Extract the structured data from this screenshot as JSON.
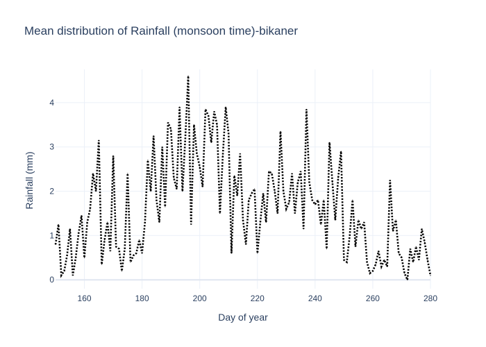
{
  "chart_data": {
    "type": "line",
    "title": "Mean distribution of Rainfall (monsoon time)-bikaner",
    "xlabel": "Day of year",
    "ylabel": "Rainfall (mm)",
    "xlim": [
      150,
      280
    ],
    "ylim": [
      -0.2,
      4.75
    ],
    "xticks": [
      160,
      180,
      200,
      220,
      240,
      260,
      280
    ],
    "yticks": [
      0,
      1,
      2,
      3,
      4
    ],
    "grid": true,
    "line_style": "dotted",
    "line_color": "#000000",
    "series": [
      {
        "x": [
          150,
          151,
          152,
          153,
          154,
          155,
          156,
          157,
          158,
          159,
          160,
          161,
          162,
          163,
          164,
          165,
          166,
          167,
          168,
          169,
          170,
          171,
          172,
          173,
          174,
          175,
          176,
          177,
          178,
          179,
          180,
          181,
          182,
          183,
          184,
          185,
          186,
          187,
          188,
          189,
          190,
          191,
          192,
          193,
          194,
          195,
          196,
          197,
          198,
          199,
          200,
          201,
          202,
          203,
          204,
          205,
          206,
          207,
          208,
          209,
          210,
          211,
          212,
          213,
          214,
          215,
          216,
          217,
          218,
          219,
          220,
          221,
          222,
          223,
          224,
          225,
          226,
          227,
          228,
          229,
          230,
          231,
          232,
          233,
          234,
          235,
          236,
          237,
          238,
          239,
          240,
          241,
          242,
          243,
          244,
          245,
          246,
          247,
          248,
          249,
          250,
          251,
          252,
          253,
          254,
          255,
          256,
          257,
          258,
          259,
          260,
          261,
          262,
          263,
          264,
          265,
          266,
          267,
          268,
          269,
          270,
          271,
          272,
          273,
          274,
          275,
          276,
          277,
          278,
          279,
          280
        ],
        "y": [
          0.8,
          1.25,
          0.1,
          0.2,
          0.55,
          1.15,
          0.1,
          0.5,
          1.05,
          1.45,
          0.5,
          1.3,
          1.6,
          2.4,
          2.0,
          3.15,
          0.35,
          0.9,
          1.3,
          0.65,
          2.8,
          0.75,
          0.7,
          0.2,
          0.7,
          2.4,
          0.4,
          0.55,
          0.6,
          0.9,
          0.6,
          1.3,
          2.7,
          2.0,
          3.25,
          1.8,
          1.3,
          3.0,
          1.65,
          3.55,
          3.4,
          2.3,
          2.05,
          3.9,
          2.0,
          3.2,
          4.6,
          1.25,
          3.5,
          2.85,
          2.55,
          2.1,
          3.85,
          3.7,
          3.1,
          3.8,
          3.5,
          1.5,
          2.8,
          3.9,
          3.3,
          0.6,
          2.35,
          1.9,
          2.85,
          1.35,
          0.8,
          1.8,
          1.95,
          2.05,
          0.6,
          1.3,
          1.95,
          1.3,
          2.45,
          2.4,
          2.0,
          1.5,
          3.35,
          2.0,
          1.6,
          1.75,
          2.4,
          1.5,
          2.2,
          2.45,
          1.15,
          3.85,
          2.2,
          1.8,
          1.7,
          1.8,
          1.25,
          1.8,
          0.7,
          3.1,
          2.2,
          1.35,
          2.3,
          2.9,
          0.45,
          0.4,
          1.0,
          1.8,
          0.75,
          1.35,
          1.15,
          1.3,
          0.4,
          0.15,
          0.2,
          0.35,
          0.65,
          0.3,
          0.45,
          0.3,
          2.25,
          1.1,
          1.35,
          0.6,
          0.5,
          0.15,
          0.0,
          0.7,
          0.4,
          0.75,
          0.45,
          1.15,
          0.85,
          0.45,
          0.1
        ]
      }
    ]
  }
}
